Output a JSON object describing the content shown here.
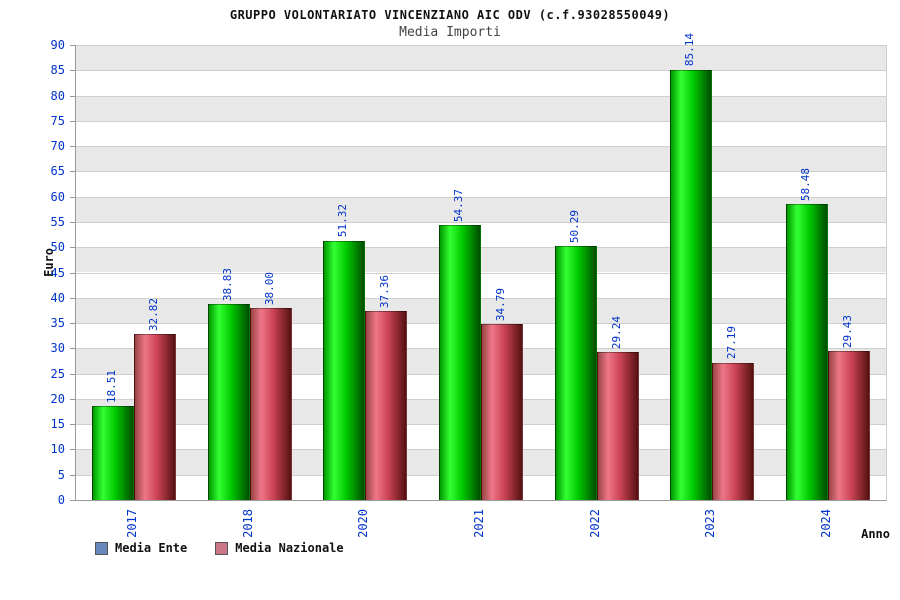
{
  "title": "GRUPPO VOLONTARIATO VINCENZIANO AIC ODV (c.f.93028550049)",
  "subtitle": "Media Importi",
  "chart_data": {
    "type": "bar",
    "categories": [
      "2017",
      "2018",
      "2020",
      "2021",
      "2022",
      "2023",
      "2024"
    ],
    "series": [
      {
        "name": "Media Ente",
        "values": [
          18.51,
          38.83,
          51.32,
          54.37,
          50.29,
          85.14,
          58.48
        ],
        "labels": [
          "18.51",
          "38.83",
          "51.32",
          "54.37",
          "50.29",
          "85.14",
          "58.48"
        ],
        "gradient": [
          "#009900",
          "#33ff33",
          "#00cc00",
          "#004d00"
        ]
      },
      {
        "name": "Media Nazionale",
        "values": [
          32.82,
          38.0,
          37.36,
          34.79,
          29.24,
          27.19,
          29.43
        ],
        "labels": [
          "32.82",
          "38.00",
          "37.36",
          "34.79",
          "29.24",
          "27.19",
          "29.43"
        ],
        "gradient": [
          "#994444",
          "#ee7788",
          "#cc4455",
          "#551111"
        ]
      }
    ],
    "title": "Media Importi",
    "xlabel": "Anno",
    "ylabel": "Euro",
    "ylim": [
      0,
      90
    ],
    "yticks": [
      0,
      5,
      10,
      15,
      20,
      25,
      30,
      35,
      40,
      45,
      50,
      55,
      60,
      65,
      70,
      75,
      80,
      85,
      90
    ],
    "grid": true,
    "band_colors": [
      "#e8e8e8",
      "#ffffff"
    ],
    "value_label_color": "#0033cc",
    "tick_label_color": "#0033cc",
    "legend_position": "bottom-left",
    "legend": [
      {
        "label": "Media Ente",
        "swatch": "#6688bb"
      },
      {
        "label": "Media Nazionale",
        "swatch": "#cc7788"
      }
    ]
  }
}
